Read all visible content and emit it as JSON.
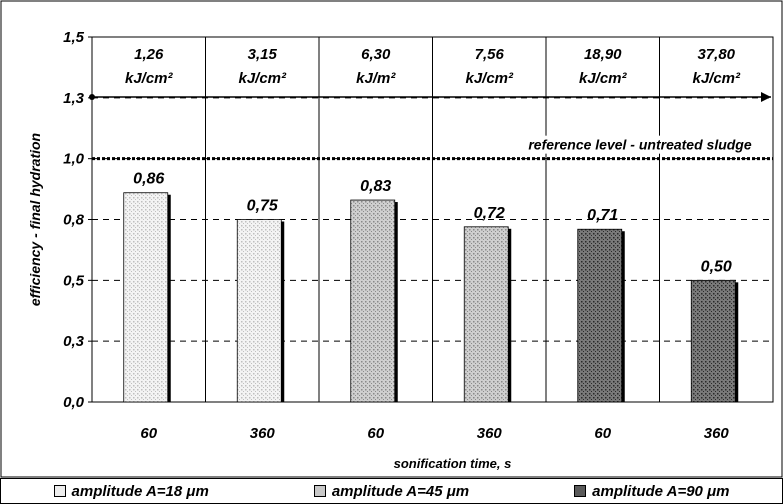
{
  "chart_data": {
    "type": "bar",
    "ylabel": "efficiency - final hydration",
    "xlabel": "sonification time, s",
    "ylim": [
      0,
      1.5
    ],
    "ytick_labels": [
      "0,0",
      "0,3",
      "0,5",
      "0,8",
      "1,0",
      "1,3",
      "1,5"
    ],
    "ytick_values": [
      0,
      0.25,
      0.5,
      0.75,
      1.0,
      1.25,
      1.5
    ],
    "categories": [
      "60",
      "360",
      "60",
      "360",
      "60",
      "360"
    ],
    "values": [
      0.86,
      0.75,
      0.83,
      0.72,
      0.71,
      0.5
    ],
    "value_labels": [
      "0,86",
      "0,75",
      "0,83",
      "0,72",
      "0,71",
      "0,50"
    ],
    "series_index": [
      0,
      0,
      1,
      1,
      2,
      2
    ],
    "series": [
      {
        "name": "amplitude A=18 μm",
        "color": "#ededed"
      },
      {
        "name": "amplitude A=45 μm",
        "color": "#c8c8c8"
      },
      {
        "name": "amplitude A=90 μm",
        "color": "#5a5a5a"
      }
    ],
    "energy_labels": [
      {
        "value": "1,26",
        "unit": "kJ/cm²"
      },
      {
        "value": "3,15",
        "unit": "kJ/cm²"
      },
      {
        "value": "6,30",
        "unit": "kJ/m²"
      },
      {
        "value": "7,56",
        "unit": "kJ/cm²"
      },
      {
        "value": "18,90",
        "unit": "kJ/cm²"
      },
      {
        "value": "37,80",
        "unit": "kJ/cm²"
      }
    ],
    "reference_level": {
      "value": 1.0,
      "label": "reference level - untreated sludge"
    },
    "arrow_level": 1.3,
    "grid": true
  }
}
